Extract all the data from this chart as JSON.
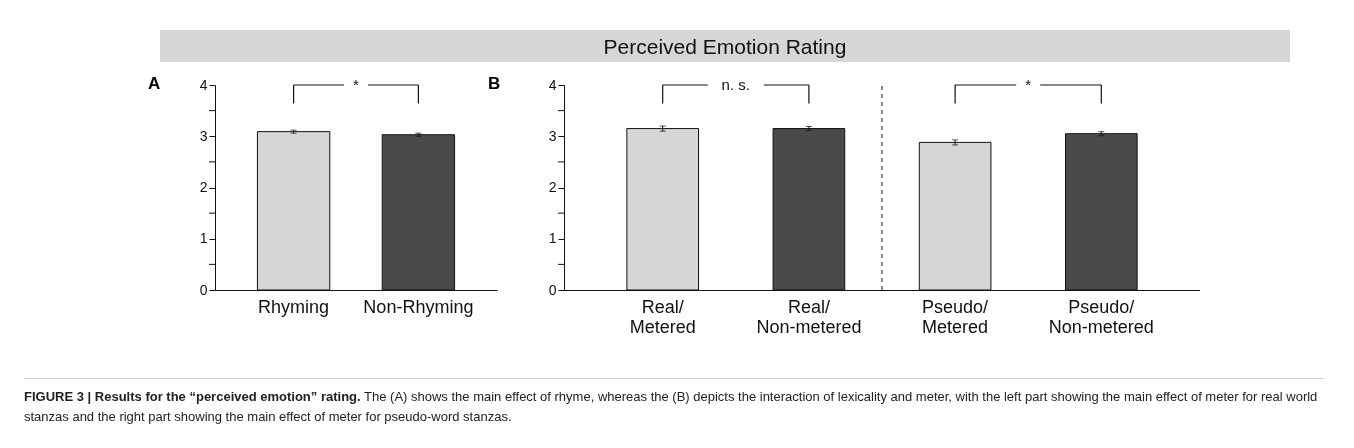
{
  "chart_data": [
    {
      "type": "bar",
      "categories": [
        "Rhyming",
        "Non-Rhyming"
      ],
      "values": [
        3.09,
        3.03
      ],
      "colors": [
        "#d6d6d6",
        "#4a4a4a"
      ],
      "errors": [
        0.03,
        0.03
      ],
      "ylim": [
        0,
        4
      ],
      "yticks": [
        0,
        {
          "value": 0.5,
          "label": null
        },
        1,
        {
          "value": 1.5,
          "label": null
        },
        2,
        {
          "value": 2.5,
          "label": null
        },
        3,
        {
          "value": 3.5,
          "label": null
        },
        4
      ],
      "annotations": [
        "A",
        "*"
      ]
    },
    {
      "type": "bar",
      "title": "Perceived Emotion Rating",
      "categories": [
        "Real/\nMetered",
        "Real/\nNon-metered",
        "Pseudo/\nMetered",
        "Pseudo/\nNon-metered"
      ],
      "values": [
        3.15,
        3.15,
        2.88,
        3.05
      ],
      "colors": [
        "#d6d6d6",
        "#4a4a4a",
        "#d6d6d6",
        "#4a4a4a"
      ],
      "errors": [
        0.05,
        0.04,
        0.05,
        0.04
      ],
      "ylim": [
        0,
        4
      ],
      "yticks": [
        0,
        {
          "value": 0.5,
          "label": null
        },
        1,
        {
          "value": 1.5,
          "label": null
        },
        2,
        {
          "value": 2.5,
          "label": null
        },
        3,
        {
          "value": 3.5,
          "label": null
        },
        4
      ],
      "annotations": [
        "B",
        "n. s.",
        "*",
        "FIGURE 3 | Results for the “perceived emotion” rating.",
        "The (A) shows the main effect of rhyme, whereas the (B) depicts the interaction of lexicality and meter, with the left part showing the main effect of meter for real world stanzas and the right part showing the main effect of meter for pseudo-word stanzas."
      ]
    }
  ]
}
